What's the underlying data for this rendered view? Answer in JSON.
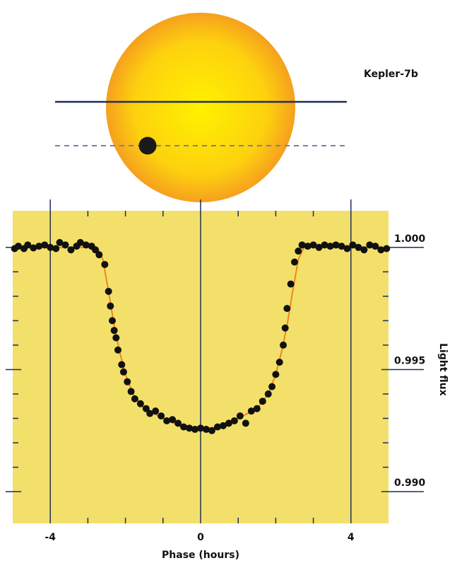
{
  "illustration": {
    "label": "Kepler-7b"
  },
  "chart_data": {
    "type": "scatter",
    "x_label": "Phase (hours)",
    "y_label": "Light flux",
    "xlim": [
      -5,
      5
    ],
    "ylim": [
      0.9887,
      1.0015
    ],
    "xticks": [
      -4,
      0,
      4
    ],
    "x_minor_ticks": [
      -3,
      -2,
      -1,
      1,
      2,
      3
    ],
    "yticks": [
      {
        "value": 1,
        "label": "1.000"
      },
      0.995,
      {
        "value": 0.99,
        "label": "0.990"
      }
    ],
    "y_minor_ticks": [
      0.999,
      0.998,
      0.997,
      0.996,
      0.994,
      0.993,
      0.992,
      0.991
    ],
    "background": "#f2e06a",
    "series": [
      {
        "type": "line",
        "color": "#f0861e",
        "x": [
          -5,
          -2.75,
          -2.6,
          -2.45,
          -2.3,
          -2.15,
          -2.0,
          -1.8,
          -1.5,
          -1.0,
          -0.5,
          0,
          0.5,
          1.0,
          1.5,
          1.8,
          2.0,
          2.15,
          2.3,
          2.45,
          2.6,
          2.75,
          5
        ],
        "values": [
          1.0,
          1.0,
          0.9995,
          0.9982,
          0.9968,
          0.9957,
          0.9948,
          0.994,
          0.9934,
          0.993,
          0.99265,
          0.99255,
          0.99265,
          0.993,
          0.9934,
          0.994,
          0.9948,
          0.9957,
          0.9968,
          0.9982,
          0.9995,
          1.0,
          1.0
        ]
      },
      {
        "type": "scatter",
        "color": "#111111",
        "x": [
          -4.95,
          -4.85,
          -4.7,
          -4.6,
          -4.45,
          -4.3,
          -4.15,
          -4.0,
          -3.85,
          -3.75,
          -3.6,
          -3.45,
          -3.3,
          -3.2,
          -3.05,
          -2.9,
          -2.8,
          -2.7,
          -2.55,
          -2.45,
          -2.4,
          -2.35,
          -2.3,
          -2.25,
          -2.2,
          -2.1,
          -2.05,
          -1.95,
          -1.85,
          -1.75,
          -1.6,
          -1.45,
          -1.35,
          -1.2,
          -1.05,
          -0.9,
          -0.75,
          -0.6,
          -0.45,
          -0.3,
          -0.15,
          0.0,
          0.15,
          0.3,
          0.45,
          0.6,
          0.75,
          0.9,
          1.05,
          1.2,
          1.35,
          1.5,
          1.65,
          1.8,
          1.9,
          2.0,
          2.1,
          2.2,
          2.25,
          2.3,
          2.4,
          2.5,
          2.6,
          2.7,
          2.85,
          3.0,
          3.15,
          3.3,
          3.45,
          3.6,
          3.75,
          3.9,
          4.05,
          4.2,
          4.35,
          4.5,
          4.65,
          4.8,
          4.95
        ],
        "values": [
          0.99995,
          1.00005,
          0.99995,
          1.0001,
          0.99998,
          1.00005,
          1.0001,
          1.0,
          0.99995,
          1.0002,
          1.0001,
          0.9999,
          1.00005,
          1.0002,
          1.0001,
          1.00005,
          0.9999,
          0.9997,
          0.9993,
          0.9982,
          0.9976,
          0.997,
          0.9966,
          0.9963,
          0.9958,
          0.9952,
          0.9949,
          0.9945,
          0.9941,
          0.9938,
          0.9936,
          0.9934,
          0.9932,
          0.9933,
          0.9931,
          0.9929,
          0.99295,
          0.9928,
          0.99265,
          0.9926,
          0.99255,
          0.9926,
          0.99255,
          0.9925,
          0.99265,
          0.9927,
          0.9928,
          0.9929,
          0.9931,
          0.9928,
          0.9933,
          0.9934,
          0.9937,
          0.994,
          0.9943,
          0.9948,
          0.9953,
          0.996,
          0.9967,
          0.9975,
          0.9985,
          0.9994,
          0.99985,
          1.0001,
          1.00005,
          1.0001,
          1.0,
          1.0001,
          1.00005,
          1.0001,
          1.00005,
          0.99995,
          1.0001,
          1.0,
          0.9999,
          1.0001,
          1.00005,
          0.9999,
          0.99995
        ]
      }
    ]
  }
}
